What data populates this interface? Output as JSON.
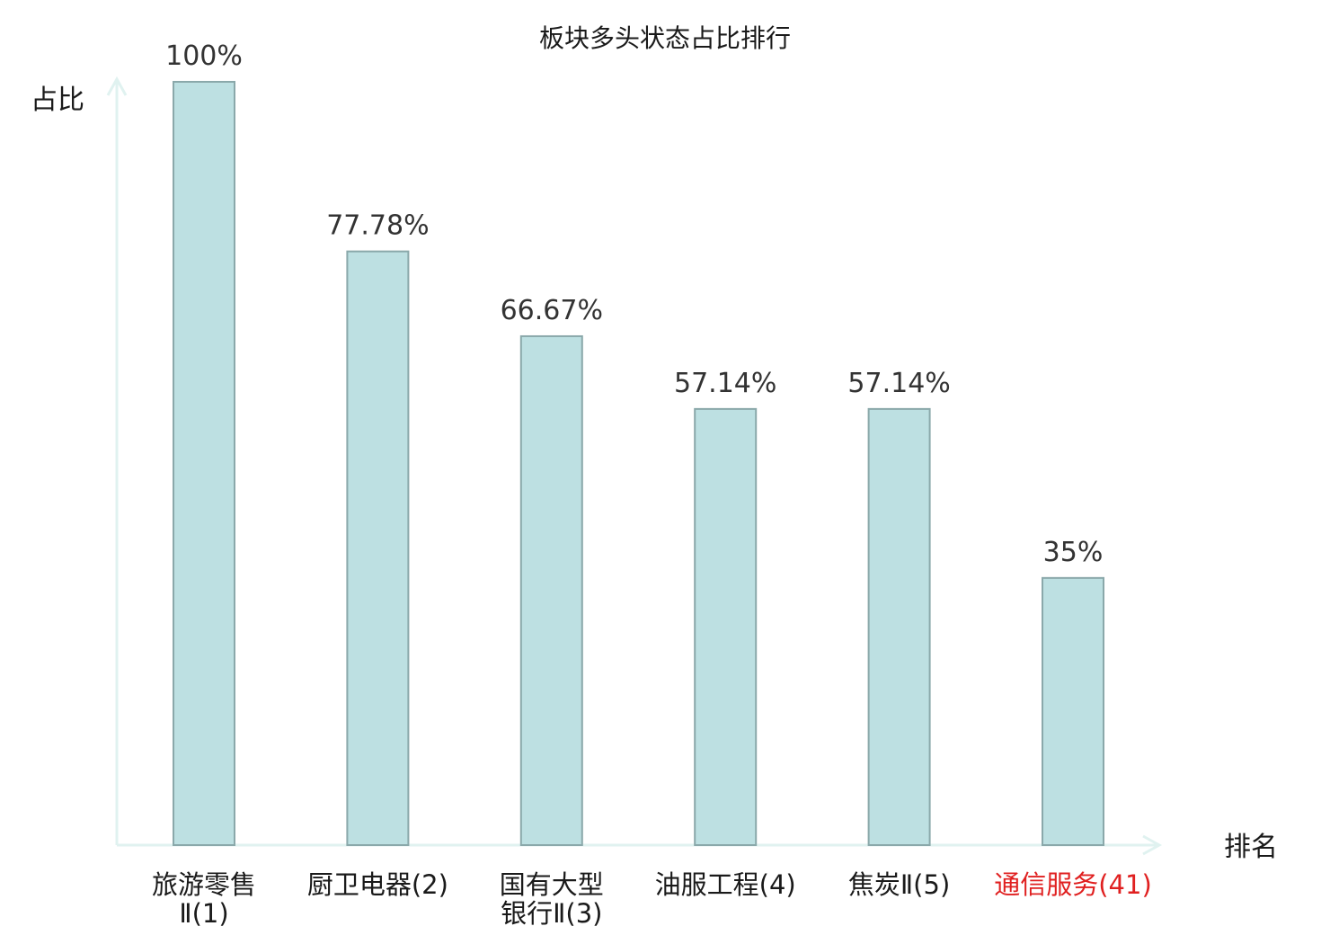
{
  "chart_data": {
    "type": "bar",
    "title": "板块多头状态占比排行",
    "ylabel": "占比",
    "xlabel": "排名",
    "ylim": [
      0,
      100
    ],
    "grid": false,
    "categories": [
      {
        "name": "旅游零售Ⅱ",
        "rank": "(1)",
        "lines": [
          "旅游零售",
          "Ⅱ(1)"
        ],
        "highlight": false
      },
      {
        "name": "厨卫电器",
        "rank": "(2)",
        "lines": [
          "厨卫电器(2)"
        ],
        "highlight": false
      },
      {
        "name": "国有大型银行Ⅱ",
        "rank": "(3)",
        "lines": [
          "国有大型",
          "银行Ⅱ(3)"
        ],
        "highlight": false
      },
      {
        "name": "油服工程",
        "rank": "(4)",
        "lines": [
          "油服工程(4)"
        ],
        "highlight": false
      },
      {
        "name": "焦炭Ⅱ",
        "rank": "(5)",
        "lines": [
          "焦炭Ⅱ(5)"
        ],
        "highlight": false
      },
      {
        "name": "通信服务",
        "rank": "(41)",
        "lines": [
          "通信服务(41)"
        ],
        "highlight": true
      }
    ],
    "values": [
      100,
      77.78,
      66.67,
      57.14,
      57.14,
      35
    ],
    "value_labels": [
      "100%",
      "77.78%",
      "66.67%",
      "57.14%",
      "57.14%",
      "35%"
    ],
    "colors": {
      "bar_fill": "#bde0e2",
      "bar_stroke": "#8aa8aa",
      "axis": "#e0f2f0",
      "text": "#1a1a1a",
      "value_text": "#333333",
      "highlight_text": "#e02020"
    }
  }
}
